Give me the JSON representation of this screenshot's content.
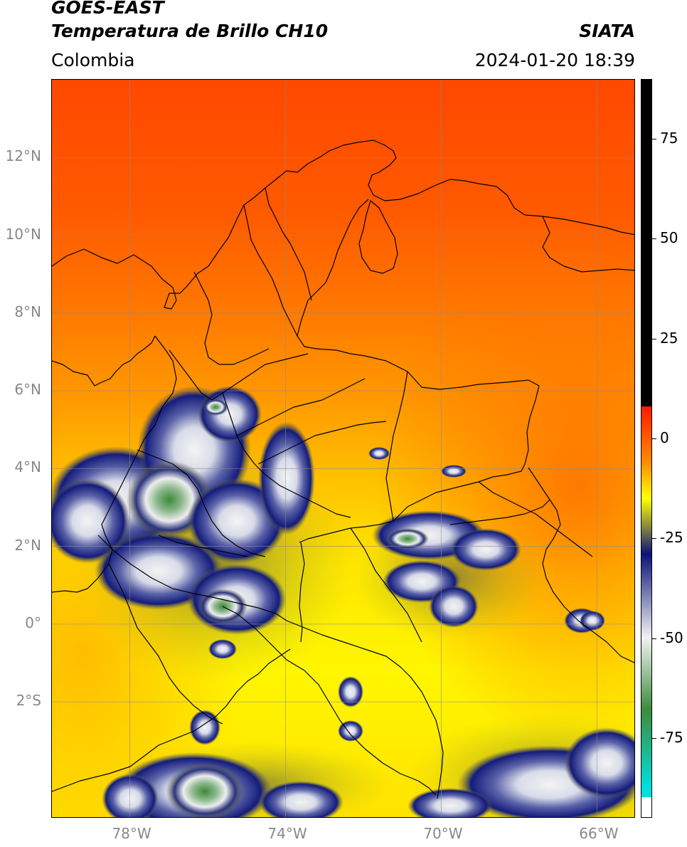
{
  "header": {
    "satellite": "GOES-EAST",
    "product": "Temperatura de Brillo CH10",
    "agency": "SIATA",
    "region": "Colombia",
    "timestamp": "2024-01-20 18:39"
  },
  "map": {
    "lon_range": [
      -80.0,
      -65.0
    ],
    "lat_range": [
      -5.0,
      14.0
    ],
    "lat_labels": [
      {
        "lat": 12,
        "text": "12°N"
      },
      {
        "lat": 10,
        "text": "10°N"
      },
      {
        "lat": 8,
        "text": "8°N"
      },
      {
        "lat": 6,
        "text": "6°N"
      },
      {
        "lat": 4,
        "text": "4°N"
      },
      {
        "lat": 2,
        "text": "2°N"
      },
      {
        "lat": 0,
        "text": "0°"
      },
      {
        "lat": -2,
        "text": "2°S"
      }
    ],
    "lon_labels": [
      {
        "lon": -78,
        "text": "78°W"
      },
      {
        "lon": -74,
        "text": "74°W"
      },
      {
        "lon": -70,
        "text": "70°W"
      },
      {
        "lon": -66,
        "text": "66°W"
      }
    ],
    "gridlines": true
  },
  "colorbar": {
    "range": [
      -95,
      90
    ],
    "ticks": [
      {
        "value": 75,
        "text": "75"
      },
      {
        "value": 50,
        "text": "50"
      },
      {
        "value": 25,
        "text": "25"
      },
      {
        "value": 0,
        "text": "0"
      },
      {
        "value": -25,
        "text": "-25"
      },
      {
        "value": -50,
        "text": "-50"
      },
      {
        "value": -75,
        "text": "-75"
      }
    ],
    "colors": {
      "black": "#000000",
      "red": "#ff1a00",
      "orange": "#ff8c00",
      "yellow": "#ffff00",
      "olive": "#8a8a3c",
      "navy": "#0a1478",
      "white": "#f2f2f2",
      "green": "#3c8c3c",
      "cyan": "#00e0e0"
    }
  }
}
